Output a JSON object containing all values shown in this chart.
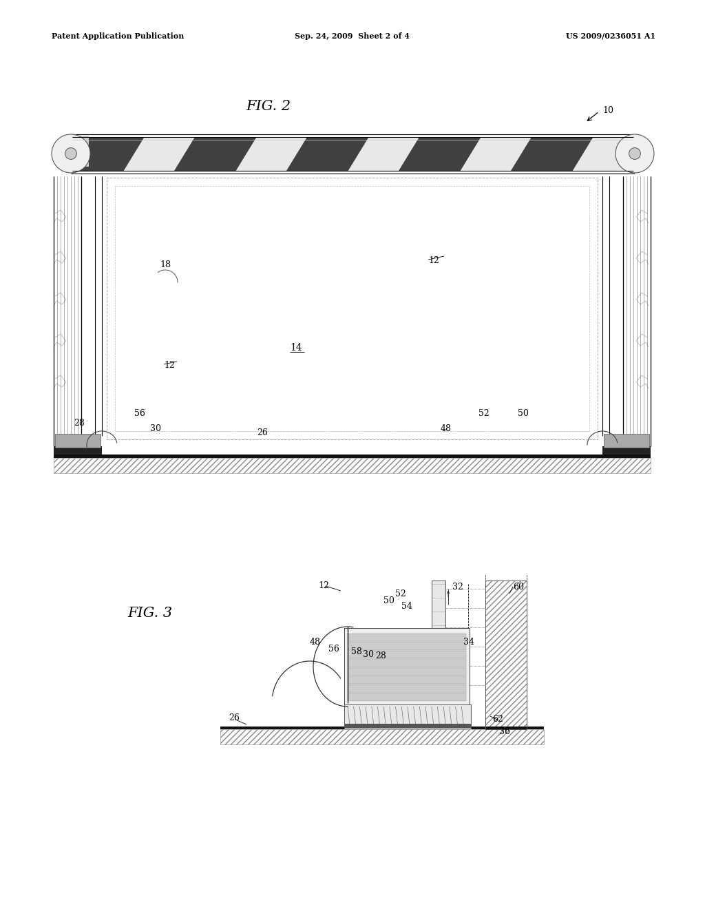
{
  "header_left": "Patent Application Publication",
  "header_mid": "Sep. 24, 2009  Sheet 2 of 4",
  "header_right": "US 2009/0236051 A1",
  "fig2_label": "FIG. 2",
  "fig3_label": "FIG. 3",
  "bg_color": "#ffffff"
}
